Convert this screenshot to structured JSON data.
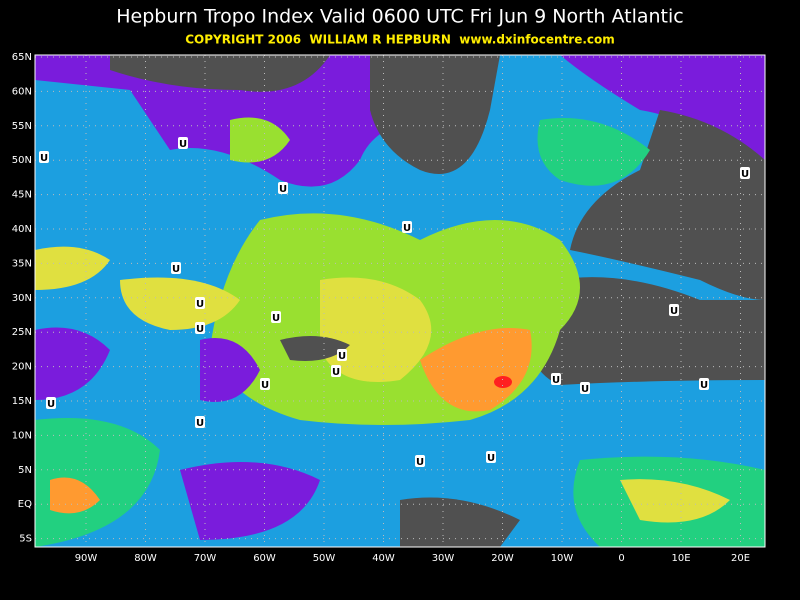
{
  "header": {
    "title": "Hepburn Tropo Index Valid 0600 UTC Fri Jun 9 North Atlantic",
    "copyright": "COPYRIGHT 2006  WILLIAM R HEPBURN  www.dxinfocentre.com"
  },
  "map": {
    "lat_labels": [
      "65N",
      "60N",
      "55N",
      "50N",
      "45N",
      "40N",
      "35N",
      "30N",
      "25N",
      "20N",
      "15N",
      "10N",
      "5N",
      "EQ",
      "5S"
    ],
    "lon_labels": [
      "90W",
      "80W",
      "70W",
      "60W",
      "50W",
      "40W",
      "30W",
      "20W",
      "10W",
      "0",
      "10E",
      "20E"
    ],
    "markers": [
      "U",
      "U",
      "U",
      "U",
      "U",
      "U",
      "U",
      "U",
      "U",
      "U",
      "U",
      "U",
      "U",
      "U",
      "U",
      "U",
      "U",
      "U",
      "U",
      "U"
    ]
  }
}
